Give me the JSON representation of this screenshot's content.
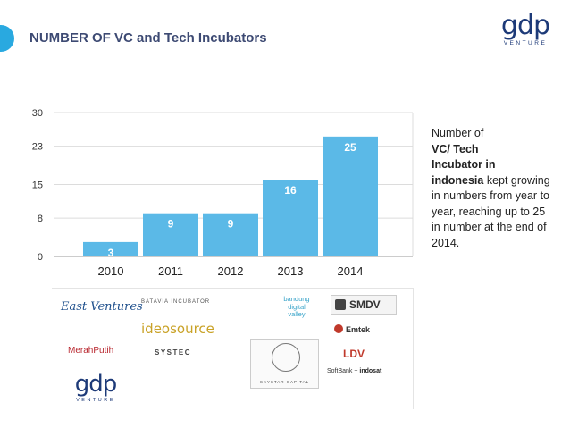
{
  "header": {
    "title": "NUMBER OF VC and Tech Incubators",
    "brand_mark": "gdp",
    "brand_sub": "VENTURE",
    "accent_color": "#29a9e0"
  },
  "chart_data": {
    "type": "bar",
    "title": "",
    "xlabel": "",
    "ylabel": "",
    "categories": [
      "2010",
      "2011",
      "2012",
      "2013",
      "2014"
    ],
    "values": [
      3,
      9,
      9,
      16,
      25
    ],
    "data_labels": [
      "3",
      "9",
      "9",
      "16",
      "25"
    ],
    "y_ticks": [
      0,
      8,
      15,
      23,
      30
    ],
    "y_tick_labels": [
      "0",
      "8",
      "15",
      "23",
      "30"
    ],
    "ylim": [
      0,
      30
    ],
    "grid": true,
    "bar_color": "#5bb9e7",
    "legend": "none"
  },
  "note": {
    "line1": "Number of",
    "bold1": "VC/ Tech",
    "bold2": "Incubator in",
    "bold3": "indonesia",
    "tail": " kept growing in numbers from year to year, reaching up to 25 in number at the end of 2014."
  },
  "logos": {
    "east": "East Ventures",
    "batavia": "BATAVIA INCUBATOR",
    "ideosource": "ideosource",
    "merahputih": "MerahPutih",
    "systec": "SYSTEC",
    "bandung": [
      "bandung",
      "digital",
      "valley"
    ],
    "seal_caption": "SKYSTAR CAPITAL",
    "smdv": "SMDV",
    "emtek": "Emtek",
    "ldv": "LDV",
    "softbank": "SoftBank +",
    "indosat": "indosat",
    "gdp_mark": "gdp",
    "gdp_sub": "VENTURE"
  }
}
